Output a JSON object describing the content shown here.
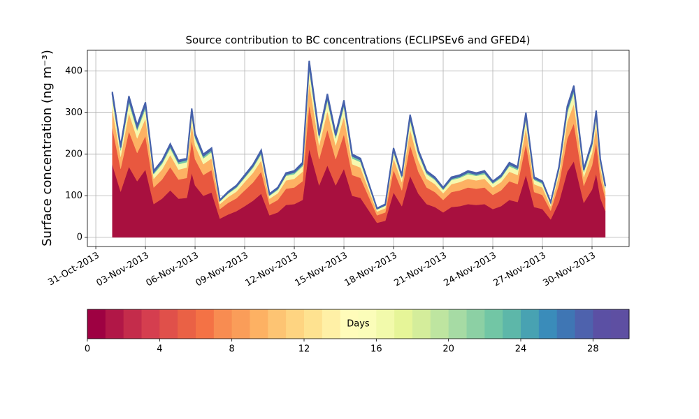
{
  "chart_data": {
    "type": "stacked_area",
    "title": "Source contribution to BC concentrations (ECLIPSEv6 and GFED4)",
    "y_label": "Surface concentration (ng m⁻³)",
    "x": [
      1.0,
      1.5,
      2.0,
      2.5,
      3.0,
      3.5,
      4.0,
      4.5,
      5.0,
      5.5,
      5.8,
      6.0,
      6.5,
      7.0,
      7.5,
      8.0,
      8.5,
      9.0,
      9.5,
      10.0,
      10.5,
      11.0,
      11.5,
      12.0,
      12.5,
      12.9,
      13.5,
      14.0,
      14.5,
      15.0,
      15.5,
      16.0,
      16.5,
      17.0,
      17.5,
      18.0,
      18.5,
      19.0,
      19.5,
      20.0,
      20.5,
      21.0,
      21.5,
      22.0,
      22.5,
      23.0,
      23.5,
      24.0,
      24.5,
      25.0,
      25.5,
      26.0,
      26.5,
      27.0,
      27.5,
      28.0,
      28.5,
      28.9,
      29.5,
      30.0,
      30.25,
      30.5,
      30.8
    ],
    "series": [
      {
        "color": "#a8103f",
        "values": [
          175,
          110,
          170,
          135,
          163,
          80,
          93,
          113,
          93,
          95,
          155,
          125,
          100,
          108,
          45,
          55,
          63,
          75,
          88,
          105,
          53,
          60,
          78,
          80,
          90,
          213,
          125,
          173,
          125,
          165,
          100,
          95,
          65,
          35,
          40,
          108,
          75,
          148,
          105,
          80,
          73,
          60,
          73,
          75,
          80,
          78,
          80,
          68,
          75,
          90,
          85,
          150,
          73,
          68,
          43,
          85,
          158,
          183,
          83,
          115,
          153,
          95,
          63
        ]
      },
      {
        "color": "#e8583f",
        "values": [
          88,
          55,
          85,
          68,
          81,
          40,
          46,
          56,
          46,
          48,
          78,
          63,
          50,
          54,
          23,
          28,
          31,
          38,
          44,
          53,
          26,
          30,
          39,
          40,
          45,
          106,
          63,
          86,
          63,
          83,
          50,
          48,
          33,
          18,
          20,
          54,
          38,
          74,
          53,
          40,
          36,
          30,
          36,
          38,
          40,
          39,
          40,
          34,
          38,
          45,
          43,
          75,
          36,
          34,
          21,
          43,
          79,
          91,
          41,
          58,
          76,
          48,
          31
        ]
      },
      {
        "color": "#fdb163",
        "values": [
          46,
          29,
          44,
          35,
          42,
          21,
          24,
          29,
          24,
          25,
          40,
          33,
          26,
          28,
          12,
          14,
          16,
          20,
          23,
          27,
          14,
          16,
          20,
          21,
          23,
          55,
          33,
          45,
          33,
          43,
          26,
          25,
          17,
          9,
          10,
          28,
          20,
          38,
          27,
          21,
          19,
          16,
          19,
          20,
          21,
          20,
          21,
          18,
          20,
          23,
          22,
          39,
          19,
          18,
          11,
          22,
          41,
          47,
          21,
          30,
          40,
          24,
          16
        ]
      },
      {
        "color": "#f6f9ae",
        "values": [
          25,
          15,
          24,
          19,
          23,
          11,
          13,
          16,
          13,
          13,
          22,
          17,
          14,
          15,
          6,
          8,
          9,
          10,
          12,
          15,
          7,
          8,
          11,
          11,
          13,
          30,
          17,
          24,
          17,
          23,
          14,
          13,
          9,
          5,
          6,
          15,
          10,
          21,
          15,
          11,
          10,
          8,
          10,
          10,
          11,
          11,
          11,
          9,
          10,
          13,
          12,
          21,
          10,
          9,
          6,
          12,
          22,
          26,
          12,
          16,
          21,
          13,
          9
        ]
      },
      {
        "color": "#72c6a5",
        "values": [
          10,
          7,
          10,
          8,
          10,
          5,
          6,
          7,
          6,
          6,
          9,
          7,
          6,
          6,
          3,
          3,
          4,
          4,
          5,
          6,
          3,
          4,
          4,
          5,
          5,
          13,
          7,
          10,
          7,
          10,
          6,
          6,
          4,
          2,
          2,
          6,
          4,
          9,
          6,
          5,
          4,
          4,
          4,
          4,
          5,
          4,
          5,
          4,
          4,
          5,
          5,
          9,
          4,
          4,
          3,
          5,
          9,
          11,
          5,
          7,
          9,
          6,
          4
        ]
      },
      {
        "color": "#4661ab",
        "values": [
          6,
          4,
          7,
          5,
          6,
          3,
          3,
          4,
          3,
          3,
          6,
          5,
          4,
          4,
          1,
          2,
          2,
          3,
          3,
          4,
          2,
          2,
          3,
          3,
          4,
          8,
          5,
          7,
          5,
          6,
          4,
          3,
          2,
          1,
          2,
          4,
          3,
          5,
          4,
          3,
          3,
          2,
          3,
          3,
          3,
          3,
          3,
          2,
          3,
          4,
          3,
          6,
          3,
          2,
          1,
          3,
          6,
          7,
          3,
          4,
          6,
          3,
          2
        ]
      }
    ],
    "xlim": [
      -0.51,
      32.24
    ],
    "xticks": [
      {
        "value": 0,
        "label": "31-Oct-2013"
      },
      {
        "value": 3,
        "label": "03-Nov-2013"
      },
      {
        "value": 6,
        "label": "06-Nov-2013"
      },
      {
        "value": 9,
        "label": "09-Nov-2013"
      },
      {
        "value": 12,
        "label": "12-Nov-2013"
      },
      {
        "value": 15,
        "label": "15-Nov-2013"
      },
      {
        "value": 18,
        "label": "18-Nov-2013"
      },
      {
        "value": 21,
        "label": "21-Nov-2013"
      },
      {
        "value": 24,
        "label": "24-Nov-2013"
      },
      {
        "value": 27,
        "label": "27-Nov-2013"
      },
      {
        "value": 30,
        "label": "30-Nov-2013"
      }
    ],
    "ylim": [
      -22,
      450
    ],
    "yticks": [
      0,
      100,
      200,
      300,
      400
    ],
    "grid": true,
    "colorbar": {
      "label": "Days",
      "range": [
        0,
        30
      ],
      "ticks": [
        0,
        4,
        8,
        12,
        16,
        20,
        24,
        28
      ],
      "colors": [
        "#9e0142",
        "#b11747",
        "#c42c4b",
        "#d53e4f",
        "#e0504a",
        "#ea6145",
        "#f47245",
        "#f88c51",
        "#fa9d59",
        "#fdb163",
        "#fdc473",
        "#fed481",
        "#fee290",
        "#fff0a6",
        "#fffcba",
        "#fbfdb9",
        "#f2faab",
        "#e6f598",
        "#d4ed9b",
        "#bee5a0",
        "#a6dba4",
        "#8cd0a4",
        "#72c6a5",
        "#5db7a9",
        "#48a2b2",
        "#3a8cba",
        "#3f76b4",
        "#4e62ad",
        "#5b50a4",
        "#5e4fa2"
      ]
    }
  }
}
